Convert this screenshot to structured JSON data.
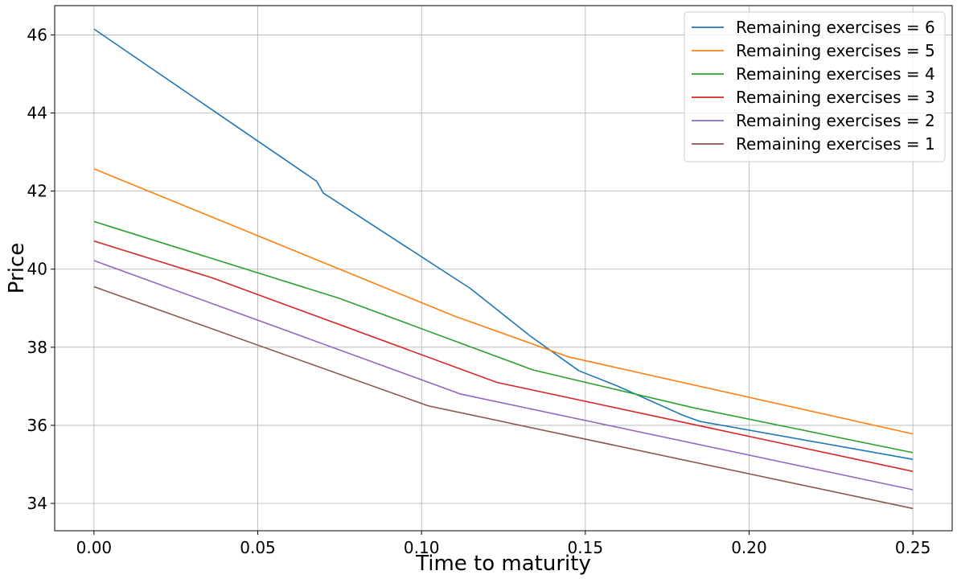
{
  "chart_data": {
    "type": "line",
    "title": "",
    "xlabel": "Time to maturity",
    "ylabel": "Price",
    "xlim": [
      -0.012,
      0.262
    ],
    "ylim": [
      33.3,
      46.75
    ],
    "xticks": [
      0.0,
      0.05,
      0.1,
      0.15,
      0.2,
      0.25
    ],
    "xtick_labels": [
      "0.00",
      "0.05",
      "0.10",
      "0.15",
      "0.20",
      "0.25"
    ],
    "yticks": [
      34,
      36,
      38,
      40,
      42,
      44,
      46
    ],
    "ytick_labels": [
      "34",
      "36",
      "38",
      "40",
      "42",
      "44",
      "46"
    ],
    "grid": true,
    "legend_position": "top-right",
    "series": [
      {
        "name": "Remaining exercises = 6",
        "color": "#1f77b4",
        "points": [
          [
            0.0,
            46.15
          ],
          [
            0.068,
            42.25
          ],
          [
            0.07,
            41.95
          ],
          [
            0.115,
            39.5
          ],
          [
            0.133,
            38.3
          ],
          [
            0.148,
            37.4
          ],
          [
            0.16,
            37.0
          ],
          [
            0.18,
            36.25
          ],
          [
            0.185,
            36.1
          ],
          [
            0.25,
            35.13
          ]
        ]
      },
      {
        "name": "Remaining exercises = 5",
        "color": "#ff7f0e",
        "points": [
          [
            0.0,
            42.57
          ],
          [
            0.11,
            38.8
          ],
          [
            0.145,
            37.75
          ],
          [
            0.25,
            35.78
          ]
        ]
      },
      {
        "name": "Remaining exercises = 4",
        "color": "#2ca02c",
        "points": [
          [
            0.0,
            41.22
          ],
          [
            0.075,
            39.25
          ],
          [
            0.134,
            37.42
          ],
          [
            0.183,
            36.45
          ],
          [
            0.25,
            35.3
          ]
        ]
      },
      {
        "name": "Remaining exercises = 3",
        "color": "#d62728",
        "points": [
          [
            0.0,
            40.72
          ],
          [
            0.036,
            39.78
          ],
          [
            0.123,
            37.1
          ],
          [
            0.25,
            34.82
          ]
        ]
      },
      {
        "name": "Remaining exercises = 2",
        "color": "#9467bd",
        "points": [
          [
            0.0,
            40.22
          ],
          [
            0.112,
            36.8
          ],
          [
            0.25,
            34.35
          ]
        ]
      },
      {
        "name": "Remaining exercises = 1",
        "color": "#8c564b",
        "points": [
          [
            0.0,
            39.55
          ],
          [
            0.102,
            36.5
          ],
          [
            0.25,
            33.87
          ]
        ]
      }
    ]
  }
}
